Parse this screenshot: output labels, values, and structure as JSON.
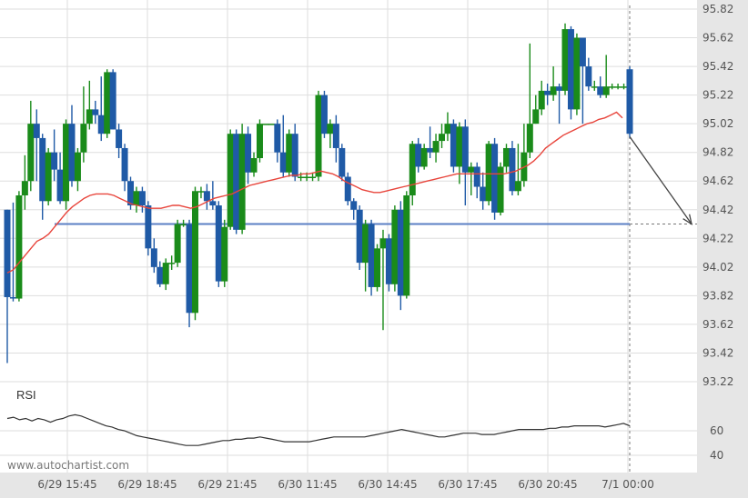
{
  "chart_data": {
    "type": "candlestick",
    "price_axis": {
      "ylim": [
        93.22,
        95.82
      ],
      "ticks": [
        "95.82",
        "95.62",
        "95.42",
        "95.22",
        "95.02",
        "94.82",
        "94.62",
        "94.42",
        "94.22",
        "94.02",
        "93.82",
        "93.62",
        "93.42",
        "93.22"
      ]
    },
    "rsi_axis": {
      "ylim": [
        20,
        100
      ],
      "ticks": [
        "60",
        "40"
      ],
      "label": "RSI"
    },
    "x_tick_labels": [
      "6/29 15:45",
      "6/29 18:45",
      "6/29 21:45",
      "6/30 11:45",
      "6/30 14:45",
      "6/30 17:45",
      "6/30 20:45",
      "7/1 00:00"
    ],
    "candles": [
      [
        94.42,
        93.81,
        94.42,
        93.35
      ],
      [
        93.81,
        93.8,
        94.47,
        93.78
      ],
      [
        93.8,
        94.52,
        94.55,
        93.78
      ],
      [
        94.52,
        94.62,
        94.8,
        94.42
      ],
      [
        94.62,
        95.02,
        95.18,
        94.55
      ],
      [
        95.02,
        94.92,
        95.12,
        94.62
      ],
      [
        94.92,
        94.48,
        94.95,
        94.35
      ],
      [
        94.48,
        94.82,
        94.85,
        94.45
      ],
      [
        94.82,
        94.7,
        94.98,
        94.62
      ],
      [
        94.7,
        94.48,
        94.82,
        94.46
      ],
      [
        94.48,
        95.02,
        95.05,
        94.42
      ],
      [
        95.02,
        94.62,
        95.15,
        94.58
      ],
      [
        94.62,
        94.82,
        94.85,
        94.55
      ],
      [
        94.82,
        95.02,
        95.28,
        94.75
      ],
      [
        95.02,
        95.12,
        95.32,
        94.98
      ],
      [
        95.12,
        95.08,
        95.18,
        95.02
      ],
      [
        95.08,
        94.95,
        95.35,
        94.9
      ],
      [
        94.95,
        95.38,
        95.4,
        94.92
      ],
      [
        95.38,
        94.98,
        95.4,
        94.98
      ],
      [
        94.98,
        94.85,
        95.02,
        94.78
      ],
      [
        94.85,
        94.62,
        94.88,
        94.55
      ],
      [
        94.62,
        94.45,
        94.65,
        94.42
      ],
      [
        94.45,
        94.55,
        94.58,
        94.4
      ],
      [
        94.55,
        94.45,
        94.58,
        94.4
      ],
      [
        94.45,
        94.15,
        94.48,
        94.1
      ],
      [
        94.15,
        94.02,
        94.22,
        93.98
      ],
      [
        94.02,
        93.9,
        94.06,
        93.88
      ],
      [
        93.9,
        94.05,
        94.08,
        93.86
      ],
      [
        94.05,
        94.05,
        94.1,
        94.0
      ],
      [
        94.05,
        94.32,
        94.35,
        94.02
      ],
      [
        94.32,
        94.32,
        94.35,
        94.3
      ],
      [
        94.32,
        93.7,
        94.35,
        93.6
      ],
      [
        93.7,
        94.55,
        94.58,
        93.65
      ],
      [
        94.55,
        94.55,
        94.58,
        94.5
      ],
      [
        94.55,
        94.48,
        94.6,
        94.42
      ],
      [
        94.48,
        94.45,
        94.62,
        94.42
      ],
      [
        94.45,
        93.92,
        94.48,
        93.88
      ],
      [
        93.92,
        94.3,
        94.35,
        93.88
      ],
      [
        94.3,
        94.95,
        94.98,
        94.28
      ],
      [
        94.95,
        94.28,
        94.98,
        94.25
      ],
      [
        94.28,
        94.95,
        95.02,
        94.25
      ],
      [
        94.95,
        94.68,
        95.0,
        94.6
      ],
      [
        94.68,
        94.78,
        94.82,
        94.65
      ],
      [
        94.78,
        95.02,
        95.05,
        94.75
      ],
      [
        95.02,
        95.02,
        95.02,
        95.02
      ],
      [
        95.02,
        95.02,
        95.02,
        95.02
      ],
      [
        95.02,
        94.82,
        95.05,
        94.75
      ],
      [
        94.82,
        94.68,
        95.08,
        94.65
      ],
      [
        94.68,
        94.95,
        94.98,
        94.65
      ],
      [
        94.95,
        94.65,
        95.02,
        94.62
      ],
      [
        94.65,
        94.65,
        94.68,
        94.62
      ],
      [
        94.65,
        94.65,
        94.68,
        94.62
      ],
      [
        94.65,
        94.65,
        94.68,
        94.62
      ],
      [
        94.65,
        95.22,
        95.25,
        94.62
      ],
      [
        95.22,
        94.95,
        95.25,
        94.92
      ],
      [
        94.95,
        95.02,
        95.05,
        94.85
      ],
      [
        95.02,
        94.85,
        95.08,
        94.75
      ],
      [
        94.85,
        94.65,
        94.88,
        94.62
      ],
      [
        94.65,
        94.48,
        94.68,
        94.45
      ],
      [
        94.48,
        94.42,
        94.5,
        94.35
      ],
      [
        94.42,
        94.05,
        94.45,
        94.0
      ],
      [
        94.05,
        94.32,
        94.35,
        93.85
      ],
      [
        94.32,
        93.88,
        94.35,
        93.82
      ],
      [
        93.88,
        94.15,
        94.18,
        93.85
      ],
      [
        94.15,
        94.22,
        94.28,
        93.58
      ],
      [
        94.22,
        93.9,
        94.25,
        93.85
      ],
      [
        93.9,
        94.42,
        94.45,
        93.85
      ],
      [
        94.42,
        93.82,
        94.48,
        93.72
      ],
      [
        93.82,
        94.52,
        94.55,
        93.8
      ],
      [
        94.52,
        94.88,
        94.9,
        94.45
      ],
      [
        94.88,
        94.72,
        94.92,
        94.68
      ],
      [
        94.72,
        94.85,
        94.88,
        94.7
      ],
      [
        94.85,
        94.82,
        95.0,
        94.78
      ],
      [
        94.82,
        94.9,
        94.95,
        94.75
      ],
      [
        94.9,
        94.95,
        95.02,
        94.85
      ],
      [
        94.95,
        95.02,
        95.1,
        94.9
      ],
      [
        95.02,
        94.72,
        95.05,
        94.68
      ],
      [
        94.72,
        95.0,
        95.03,
        94.6
      ],
      [
        95.0,
        94.68,
        95.05,
        94.45
      ],
      [
        94.68,
        94.72,
        94.75,
        94.52
      ],
      [
        94.72,
        94.58,
        94.75,
        94.5
      ],
      [
        94.58,
        94.48,
        94.68,
        94.42
      ],
      [
        94.48,
        94.88,
        94.9,
        94.45
      ],
      [
        94.88,
        94.4,
        94.92,
        94.35
      ],
      [
        94.4,
        94.72,
        94.75,
        94.38
      ],
      [
        94.72,
        94.85,
        94.88,
        94.68
      ],
      [
        94.85,
        94.55,
        94.9,
        94.52
      ],
      [
        94.55,
        94.62,
        94.88,
        94.52
      ],
      [
        94.62,
        94.82,
        95.02,
        94.58
      ],
      [
        94.82,
        95.02,
        95.58,
        94.78
      ],
      [
        95.02,
        95.12,
        95.22,
        95.02
      ],
      [
        95.12,
        95.25,
        95.32,
        95.08
      ],
      [
        95.25,
        95.22,
        95.3,
        95.15
      ],
      [
        95.22,
        95.28,
        95.42,
        95.18
      ],
      [
        95.28,
        95.25,
        95.3,
        95.02
      ],
      [
        95.25,
        95.68,
        95.72,
        95.22
      ],
      [
        95.68,
        95.12,
        95.7,
        95.05
      ],
      [
        95.12,
        95.62,
        95.65,
        95.08
      ],
      [
        95.62,
        95.42,
        95.55,
        95.02
      ],
      [
        95.42,
        95.28,
        95.48,
        95.25
      ],
      [
        95.28,
        95.28,
        95.32,
        95.25
      ],
      [
        95.28,
        95.22,
        95.35,
        95.2
      ],
      [
        95.22,
        95.28,
        95.5,
        95.2
      ],
      [
        95.28,
        95.28,
        95.3,
        95.26
      ],
      [
        95.28,
        95.28,
        95.3,
        95.26
      ],
      [
        95.28,
        95.28,
        95.3,
        95.26
      ],
      [
        95.4,
        94.95,
        95.42,
        94.92
      ]
    ],
    "ma_values": [
      93.98,
      94.0,
      94.05,
      94.1,
      94.15,
      94.2,
      94.22,
      94.25,
      94.3,
      94.35,
      94.4,
      94.44,
      94.47,
      94.5,
      94.52,
      94.53,
      94.53,
      94.53,
      94.52,
      94.5,
      94.48,
      94.46,
      94.45,
      94.44,
      94.43,
      94.43,
      94.43,
      94.44,
      94.45,
      94.45,
      94.44,
      94.43,
      94.44,
      94.46,
      94.48,
      94.5,
      94.51,
      94.52,
      94.53,
      94.55,
      94.57,
      94.59,
      94.6,
      94.61,
      94.62,
      94.63,
      94.64,
      94.65,
      94.66,
      94.66,
      94.67,
      94.67,
      94.68,
      94.69,
      94.68,
      94.67,
      94.65,
      94.62,
      94.6,
      94.58,
      94.56,
      94.55,
      94.54,
      94.54,
      94.55,
      94.56,
      94.57,
      94.58,
      94.59,
      94.6,
      94.61,
      94.62,
      94.63,
      94.64,
      94.65,
      94.66,
      94.67,
      94.67,
      94.67,
      94.67,
      94.67,
      94.67,
      94.67,
      94.67,
      94.67,
      94.68,
      94.69,
      94.71,
      94.73,
      94.76,
      94.8,
      94.85,
      94.88,
      94.91,
      94.94,
      94.96,
      94.98,
      95.0,
      95.02,
      95.03,
      95.05,
      95.06,
      95.08,
      95.1,
      95.06
    ],
    "rsi_values": [
      70,
      71,
      69,
      70,
      68,
      70,
      69,
      67,
      69,
      70,
      72,
      73,
      72,
      70,
      68,
      66,
      64,
      63,
      61,
      60,
      58,
      56,
      55,
      54,
      53,
      52,
      51,
      50,
      49,
      48,
      48,
      48,
      49,
      50,
      51,
      52,
      52,
      53,
      53,
      54,
      54,
      55,
      54,
      53,
      52,
      51,
      51,
      51,
      51,
      51,
      52,
      53,
      54,
      55,
      55,
      55,
      55,
      55,
      55,
      56,
      57,
      58,
      59,
      60,
      61,
      60,
      59,
      58,
      57,
      56,
      55,
      55,
      56,
      57,
      58,
      58,
      58,
      57,
      57,
      57,
      58,
      59,
      60,
      61,
      61,
      61,
      61,
      61,
      62,
      62,
      63,
      63,
      64,
      64,
      64,
      64,
      64,
      63,
      64,
      65,
      66,
      64
    ],
    "support_level": 94.32,
    "rsi_label": "RSI",
    "watermark": "www.autochartist.com",
    "colors": {
      "up": "#1a8b1a",
      "down": "#1f5aa6",
      "ma": "#e8453c",
      "support": "#5b7fc4",
      "rsi": "#333333",
      "grid": "#dedede",
      "axis_bg": "#e6e6e6",
      "arrow": "#444444"
    }
  }
}
